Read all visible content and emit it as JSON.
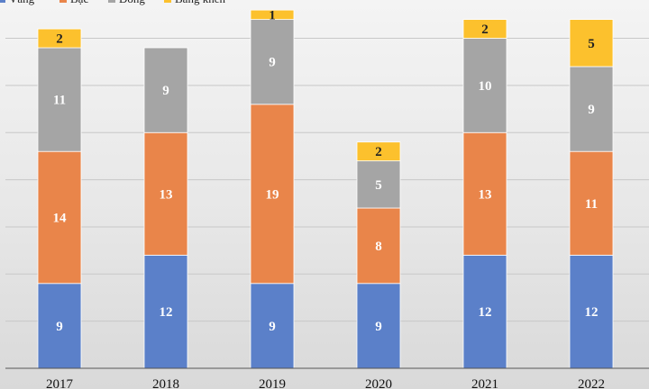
{
  "chart_data": {
    "type": "bar",
    "stacked": true,
    "title": "",
    "xlabel": "",
    "ylabel": "",
    "ylim": [
      0,
      38
    ],
    "grid": true,
    "legend_position": "top-left",
    "categories": [
      "2017",
      "2018",
      "2019",
      "2020",
      "2021",
      "2022"
    ],
    "series": [
      {
        "name": "Vàng",
        "color": "#5b80c9",
        "values": [
          9,
          12,
          9,
          9,
          12,
          12
        ]
      },
      {
        "name": "Bạc",
        "color": "#e9854a",
        "values": [
          14,
          13,
          19,
          8,
          13,
          11
        ]
      },
      {
        "name": "Đồng",
        "color": "#a5a5a5",
        "values": [
          11,
          9,
          9,
          5,
          10,
          9
        ]
      },
      {
        "name": "Bằng khen",
        "color": "#fcc12d",
        "values": [
          2,
          0,
          1,
          2,
          2,
          5
        ]
      }
    ]
  }
}
